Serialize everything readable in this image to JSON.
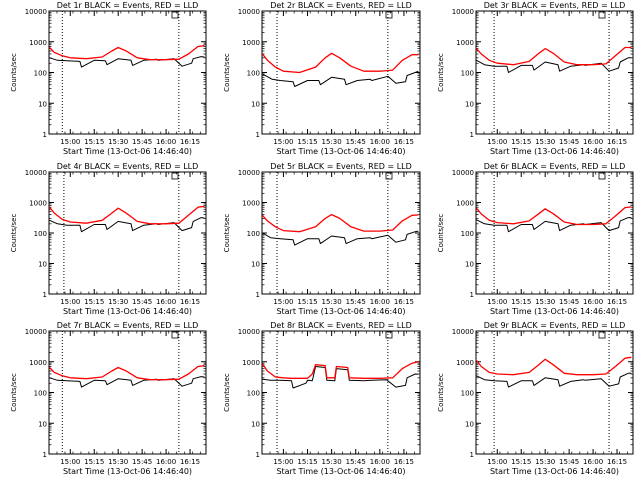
{
  "figure": {
    "xlabel": "Start Time (13-Oct-06 14:46:40)",
    "ylabel": "Counts/sec",
    "x_tick_labels": [
      "15:00",
      "15:15",
      "15:30",
      "15:45",
      "16:00",
      "16:15"
    ],
    "y_tick_labels": [
      "1",
      "10",
      "100",
      "1000",
      "10000"
    ]
  },
  "colors": {
    "events": "#000000",
    "lld": "#ff0000",
    "axes": "#000000",
    "background": "#ffffff"
  },
  "chart_data": [
    {
      "type": "line",
      "title": "Det 1r BLACK = Events, RED = LLD",
      "xlabel": "Start Time (13-Oct-06 14:46:40)",
      "ylabel": "Counts/sec",
      "y_scale": "log",
      "ylim": [
        1,
        10000
      ],
      "xlim": [
        "14:46:40",
        "16:25"
      ],
      "dotted_vlines": [
        "14:55",
        "16:08"
      ],
      "series": [
        {
          "color": "#000000",
          "x": [
            "14:47",
            "14:52",
            "14:58",
            "15:06",
            "15:07",
            "15:15",
            "15:22",
            "15:23",
            "15:30",
            "15:38",
            "15:39",
            "15:46",
            "15:54",
            "15:55",
            "16:05",
            "16:10",
            "16:16",
            "16:17",
            "16:22",
            "16:24"
          ],
          "y": [
            300,
            250,
            240,
            230,
            150,
            250,
            240,
            180,
            280,
            250,
            170,
            250,
            270,
            250,
            280,
            160,
            200,
            280,
            330,
            320
          ]
        },
        {
          "color": "#ff0000",
          "x": [
            "14:47",
            "14:50",
            "14:55",
            "15:00",
            "15:10",
            "15:20",
            "15:26",
            "15:30",
            "15:35",
            "15:42",
            "15:50",
            "16:00",
            "16:08",
            "16:14",
            "16:20",
            "16:24"
          ],
          "y": [
            650,
            450,
            350,
            300,
            280,
            320,
            500,
            650,
            500,
            300,
            260,
            260,
            270,
            400,
            700,
            750
          ]
        }
      ]
    },
    {
      "type": "line",
      "title": "Det 2r BLACK = Events, RED = LLD",
      "xlabel": "Start Time (13-Oct-06 14:46:40)",
      "ylabel": "Counts/sec",
      "y_scale": "log",
      "ylim": [
        1,
        10000
      ],
      "xlim": [
        "14:46:40",
        "16:25"
      ],
      "dotted_vlines": [
        "14:56",
        "16:05"
      ],
      "series": [
        {
          "color": "#000000",
          "x": [
            "14:47",
            "14:53",
            "14:58",
            "15:06",
            "15:07",
            "15:15",
            "15:22",
            "15:23",
            "15:30",
            "15:38",
            "15:39",
            "15:46",
            "15:54",
            "15:55",
            "16:05",
            "16:10",
            "16:16",
            "16:17",
            "16:22",
            "16:24"
          ],
          "y": [
            90,
            60,
            55,
            50,
            35,
            55,
            55,
            40,
            70,
            60,
            40,
            55,
            60,
            55,
            75,
            45,
            50,
            80,
            100,
            110
          ]
        },
        {
          "color": "#ff0000",
          "x": [
            "14:47",
            "14:50",
            "14:55",
            "15:00",
            "15:10",
            "15:20",
            "15:26",
            "15:30",
            "15:35",
            "15:42",
            "15:50",
            "16:00",
            "16:08",
            "16:14",
            "16:20",
            "16:24"
          ],
          "y": [
            400,
            250,
            150,
            110,
            100,
            150,
            300,
            420,
            300,
            160,
            110,
            110,
            120,
            250,
            380,
            380
          ]
        }
      ]
    },
    {
      "type": "line",
      "title": "Det 3r BLACK = Events, RED = LLD",
      "xlabel": "Start Time (13-Oct-06 14:46:40)",
      "ylabel": "Counts/sec",
      "y_scale": "log",
      "ylim": [
        1,
        10000
      ],
      "xlim": [
        "14:46:40",
        "16:25"
      ],
      "dotted_vlines": [
        "14:58",
        "16:10"
      ],
      "series": [
        {
          "color": "#000000",
          "x": [
            "14:47",
            "14:52",
            "14:58",
            "15:06",
            "15:07",
            "15:15",
            "15:22",
            "15:23",
            "15:30",
            "15:38",
            "15:39",
            "15:46",
            "15:54",
            "15:55",
            "16:05",
            "16:10",
            "16:16",
            "16:17",
            "16:22",
            "16:24"
          ],
          "y": [
            250,
            180,
            160,
            160,
            100,
            170,
            170,
            120,
            220,
            180,
            110,
            160,
            180,
            170,
            200,
            110,
            140,
            220,
            300,
            300
          ]
        },
        {
          "color": "#ff0000",
          "x": [
            "14:47",
            "14:50",
            "14:55",
            "15:00",
            "15:10",
            "15:20",
            "15:26",
            "15:30",
            "15:35",
            "15:42",
            "15:50",
            "16:00",
            "16:08",
            "16:14",
            "16:20",
            "16:24"
          ],
          "y": [
            600,
            400,
            250,
            200,
            180,
            230,
            420,
            600,
            420,
            220,
            180,
            180,
            190,
            350,
            650,
            650
          ]
        }
      ]
    },
    {
      "type": "line",
      "title": "Det 4r BLACK = Events, RED = LLD",
      "xlabel": "Start Time (13-Oct-06 14:46:40)",
      "ylabel": "Counts/sec",
      "y_scale": "log",
      "ylim": [
        1,
        10000
      ],
      "xlim": [
        "14:46:40",
        "16:25"
      ],
      "dotted_vlines": [
        "14:56",
        "16:08"
      ],
      "series": [
        {
          "color": "#000000",
          "x": [
            "14:47",
            "14:52",
            "14:58",
            "15:06",
            "15:07",
            "15:15",
            "15:22",
            "15:23",
            "15:30",
            "15:38",
            "15:39",
            "15:46",
            "15:54",
            "15:55",
            "16:05",
            "16:10",
            "16:16",
            "16:17",
            "16:22",
            "16:24"
          ],
          "y": [
            260,
            200,
            180,
            180,
            110,
            190,
            190,
            130,
            240,
            200,
            120,
            180,
            200,
            190,
            220,
            120,
            150,
            240,
            320,
            310
          ]
        },
        {
          "color": "#ff0000",
          "x": [
            "14:47",
            "14:50",
            "14:55",
            "15:00",
            "15:10",
            "15:20",
            "15:26",
            "15:30",
            "15:35",
            "15:42",
            "15:50",
            "16:00",
            "16:08",
            "16:14",
            "16:20",
            "16:24"
          ],
          "y": [
            700,
            450,
            280,
            230,
            210,
            260,
            450,
            650,
            450,
            240,
            200,
            200,
            210,
            380,
            700,
            750
          ]
        }
      ]
    },
    {
      "type": "line",
      "title": "Det 5r BLACK = Events, RED = LLD",
      "xlabel": "Start Time (13-Oct-06 14:46:40)",
      "ylabel": "Counts/sec",
      "y_scale": "log",
      "ylim": [
        1,
        10000
      ],
      "xlim": [
        "14:46:40",
        "16:25"
      ],
      "dotted_vlines": [
        "14:56",
        "16:05"
      ],
      "series": [
        {
          "color": "#000000",
          "x": [
            "14:47",
            "14:52",
            "14:58",
            "15:06",
            "15:07",
            "15:15",
            "15:22",
            "15:23",
            "15:30",
            "15:38",
            "15:39",
            "15:46",
            "15:54",
            "15:55",
            "16:05",
            "16:10",
            "16:16",
            "16:17",
            "16:22",
            "16:24"
          ],
          "y": [
            100,
            70,
            65,
            60,
            40,
            65,
            65,
            45,
            80,
            70,
            45,
            65,
            70,
            65,
            85,
            50,
            60,
            90,
            110,
            115
          ]
        },
        {
          "color": "#ff0000",
          "x": [
            "14:47",
            "14:50",
            "14:55",
            "15:00",
            "15:10",
            "15:20",
            "15:26",
            "15:30",
            "15:35",
            "15:42",
            "15:50",
            "16:00",
            "16:08",
            "16:14",
            "16:20",
            "16:24"
          ],
          "y": [
            380,
            250,
            160,
            120,
            110,
            160,
            300,
            400,
            300,
            160,
            115,
            115,
            125,
            250,
            380,
            390
          ]
        }
      ]
    },
    {
      "type": "line",
      "title": "Det 6r BLACK = Events, RED = LLD",
      "xlabel": "Start Time (13-Oct-06 14:46:40)",
      "ylabel": "Counts/sec",
      "y_scale": "log",
      "ylim": [
        1,
        10000
      ],
      "xlim": [
        "14:46:40",
        "16:25"
      ],
      "dotted_vlines": [
        "14:58",
        "16:10"
      ],
      "series": [
        {
          "color": "#000000",
          "x": [
            "14:47",
            "14:52",
            "14:58",
            "15:06",
            "15:07",
            "15:15",
            "15:22",
            "15:23",
            "15:30",
            "15:38",
            "15:39",
            "15:46",
            "15:54",
            "15:55",
            "16:05",
            "16:10",
            "16:16",
            "16:17",
            "16:22",
            "16:24"
          ],
          "y": [
            270,
            200,
            180,
            180,
            110,
            190,
            190,
            130,
            240,
            200,
            120,
            180,
            200,
            190,
            220,
            120,
            150,
            250,
            320,
            320
          ]
        },
        {
          "color": "#ff0000",
          "x": [
            "14:47",
            "14:50",
            "14:55",
            "15:00",
            "15:10",
            "15:20",
            "15:26",
            "15:30",
            "15:35",
            "15:42",
            "15:50",
            "16:00",
            "16:08",
            "16:14",
            "16:20",
            "16:24"
          ],
          "y": [
            650,
            420,
            260,
            220,
            200,
            250,
            430,
            620,
            430,
            230,
            190,
            190,
            200,
            360,
            680,
            720
          ]
        }
      ]
    },
    {
      "type": "line",
      "title": "Det 7r BLACK = Events, RED = LLD",
      "xlabel": "Start Time (13-Oct-06 14:46:40)",
      "ylabel": "Counts/sec",
      "y_scale": "log",
      "ylim": [
        1,
        10000
      ],
      "xlim": [
        "14:46:40",
        "16:25"
      ],
      "dotted_vlines": [
        "14:55",
        "16:08"
      ],
      "series": [
        {
          "color": "#000000",
          "x": [
            "14:47",
            "14:52",
            "14:58",
            "15:06",
            "15:07",
            "15:15",
            "15:22",
            "15:23",
            "15:30",
            "15:38",
            "15:39",
            "15:46",
            "15:54",
            "15:55",
            "16:05",
            "16:10",
            "16:16",
            "16:17",
            "16:22",
            "16:24"
          ],
          "y": [
            300,
            250,
            240,
            230,
            150,
            250,
            240,
            180,
            280,
            250,
            170,
            250,
            270,
            250,
            280,
            160,
            200,
            280,
            330,
            320
          ]
        },
        {
          "color": "#ff0000",
          "x": [
            "14:47",
            "14:50",
            "14:55",
            "15:00",
            "15:10",
            "15:20",
            "15:26",
            "15:30",
            "15:35",
            "15:42",
            "15:50",
            "16:00",
            "16:08",
            "16:14",
            "16:20",
            "16:24"
          ],
          "y": [
            650,
            450,
            350,
            300,
            280,
            320,
            500,
            650,
            500,
            300,
            260,
            260,
            270,
            400,
            700,
            750
          ]
        }
      ]
    },
    {
      "type": "line",
      "title": "Det 8r BLACK = Events, RED = LLD",
      "xlabel": "Start Time (13-Oct-06 14:46:40)",
      "ylabel": "Counts/sec",
      "y_scale": "log",
      "ylim": [
        1,
        10000
      ],
      "xlim": [
        "14:46:40",
        "16:25"
      ],
      "dotted_vlines": [
        "14:56",
        "16:05"
      ],
      "series": [
        {
          "color": "#000000",
          "x": [
            "14:47",
            "14:52",
            "14:58",
            "15:05",
            "15:06",
            "15:14",
            "15:15",
            "15:18",
            "15:20",
            "15:26",
            "15:27",
            "15:32",
            "15:33",
            "15:40",
            "15:41",
            "15:50",
            "15:55",
            "16:04",
            "16:05",
            "16:10",
            "16:16",
            "16:17",
            "16:22",
            "16:24"
          ],
          "y": [
            270,
            250,
            250,
            240,
            140,
            200,
            250,
            240,
            700,
            650,
            250,
            240,
            600,
            550,
            250,
            240,
            250,
            260,
            240,
            150,
            170,
            300,
            400,
            390
          ]
        },
        {
          "color": "#ff0000",
          "x": [
            "14:47",
            "14:50",
            "14:55",
            "15:00",
            "15:05",
            "15:14",
            "15:15",
            "15:18",
            "15:20",
            "15:26",
            "15:27",
            "15:32",
            "15:33",
            "15:40",
            "15:41",
            "15:50",
            "16:00",
            "16:08",
            "16:14",
            "16:20",
            "16:24"
          ],
          "y": [
            850,
            500,
            320,
            300,
            290,
            290,
            290,
            400,
            800,
            750,
            300,
            300,
            700,
            650,
            300,
            290,
            290,
            300,
            600,
            900,
            1000
          ]
        }
      ]
    },
    {
      "type": "line",
      "title": "Det 9r BLACK = Events, RED = LLD",
      "xlabel": "Start Time (13-Oct-06 14:46:40)",
      "ylabel": "Counts/sec",
      "y_scale": "log",
      "ylim": [
        1,
        10000
      ],
      "xlim": [
        "14:46:40",
        "16:25"
      ],
      "dotted_vlines": [
        "14:58",
        "16:10"
      ],
      "series": [
        {
          "color": "#000000",
          "x": [
            "14:47",
            "14:52",
            "14:58",
            "15:06",
            "15:07",
            "15:15",
            "15:22",
            "15:23",
            "15:30",
            "15:38",
            "15:39",
            "15:46",
            "15:54",
            "15:55",
            "16:05",
            "16:10",
            "16:16",
            "16:17",
            "16:22",
            "16:24"
          ],
          "y": [
            350,
            260,
            240,
            230,
            150,
            240,
            240,
            170,
            300,
            260,
            160,
            230,
            260,
            250,
            280,
            160,
            190,
            320,
            420,
            420
          ]
        },
        {
          "color": "#ff0000",
          "x": [
            "14:47",
            "14:50",
            "14:55",
            "15:00",
            "15:10",
            "15:20",
            "15:26",
            "15:30",
            "15:35",
            "15:42",
            "15:50",
            "16:00",
            "16:08",
            "16:14",
            "16:20",
            "16:24"
          ],
          "y": [
            1100,
            700,
            450,
            400,
            380,
            450,
            800,
            1200,
            800,
            420,
            380,
            380,
            400,
            700,
            1300,
            1400
          ]
        }
      ]
    }
  ]
}
